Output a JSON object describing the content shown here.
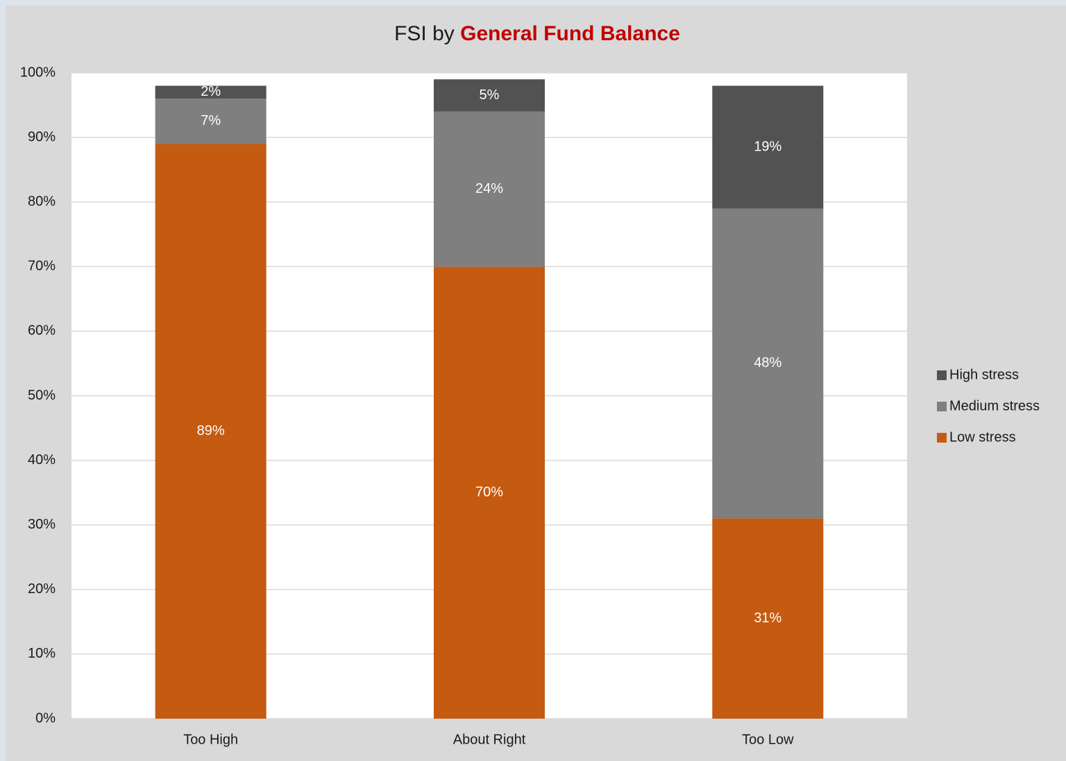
{
  "chart_data": {
    "type": "stacked_bar",
    "title_parts": [
      "FSI by",
      "General Fund Balance"
    ],
    "categories": [
      "Too High",
      "About Right",
      "Too Low"
    ],
    "series": [
      {
        "name": "Low stress",
        "color": "#c55a11",
        "values": [
          89,
          70,
          31
        ],
        "value_labels": [
          "89%",
          "70%",
          "31%"
        ]
      },
      {
        "name": "Medium stress",
        "color": "#7f7f7f",
        "values": [
          7,
          24,
          48
        ],
        "value_labels": [
          "7%",
          "24%",
          "48%"
        ]
      },
      {
        "name": "High stress",
        "color": "#525252",
        "values": [
          2,
          5,
          19
        ],
        "value_labels": [
          "2%",
          "5%",
          "19%"
        ]
      }
    ],
    "ylim": [
      0,
      100
    ],
    "yticks": [
      {
        "value": 0,
        "label": "0%"
      },
      {
        "value": 10,
        "label": "10%"
      },
      {
        "value": 20,
        "label": "20%"
      },
      {
        "value": 30,
        "label": "30%"
      },
      {
        "value": 40,
        "label": "40%"
      },
      {
        "value": 50,
        "label": "50%"
      },
      {
        "value": 60,
        "label": "60%"
      },
      {
        "value": 70,
        "label": "70%"
      },
      {
        "value": 80,
        "label": "80%"
      },
      {
        "value": 90,
        "label": "90%"
      },
      {
        "value": 100,
        "label": "100%"
      }
    ],
    "grid": true,
    "legend": "right"
  }
}
